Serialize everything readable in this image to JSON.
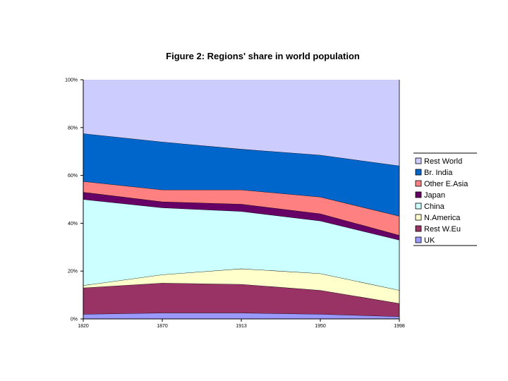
{
  "chart_data": {
    "type": "area",
    "stacked": "percent",
    "title": "Figure 2: Regions' share in world population",
    "xlabel": "",
    "ylabel": "",
    "ylim": [
      0,
      100
    ],
    "x": [
      "1820",
      "1870",
      "1913",
      "1950",
      "1998"
    ],
    "yticks": [
      "0%",
      "20%",
      "40%",
      "60%",
      "80%",
      "100%"
    ],
    "grid": false,
    "legend_position": "right",
    "series": [
      {
        "name": "UK",
        "color": "#9999ff",
        "values": [
          2.0,
          2.5,
          2.5,
          2.0,
          1.0
        ]
      },
      {
        "name": "Rest W.Eu",
        "color": "#993366",
        "values": [
          11.0,
          12.5,
          12.0,
          10.0,
          5.5
        ]
      },
      {
        "name": "N.America",
        "color": "#ffffcc",
        "values": [
          1.0,
          3.5,
          6.5,
          7.0,
          5.5
        ]
      },
      {
        "name": "China",
        "color": "#ccffff",
        "values": [
          36.0,
          28.0,
          24.0,
          22.0,
          21.0
        ]
      },
      {
        "name": "Japan",
        "color": "#660066",
        "values": [
          3.0,
          2.5,
          3.0,
          3.0,
          2.0
        ]
      },
      {
        "name": "Other E.Asia",
        "color": "#ff8080",
        "values": [
          4.5,
          5.0,
          6.0,
          7.0,
          8.0
        ]
      },
      {
        "name": "Br. India",
        "color": "#0066cc",
        "values": [
          20.0,
          20.0,
          17.0,
          17.5,
          21.0
        ]
      },
      {
        "name": "Rest World",
        "color": "#ccccff",
        "values": [
          22.5,
          26.0,
          29.0,
          31.5,
          36.0
        ]
      }
    ]
  }
}
